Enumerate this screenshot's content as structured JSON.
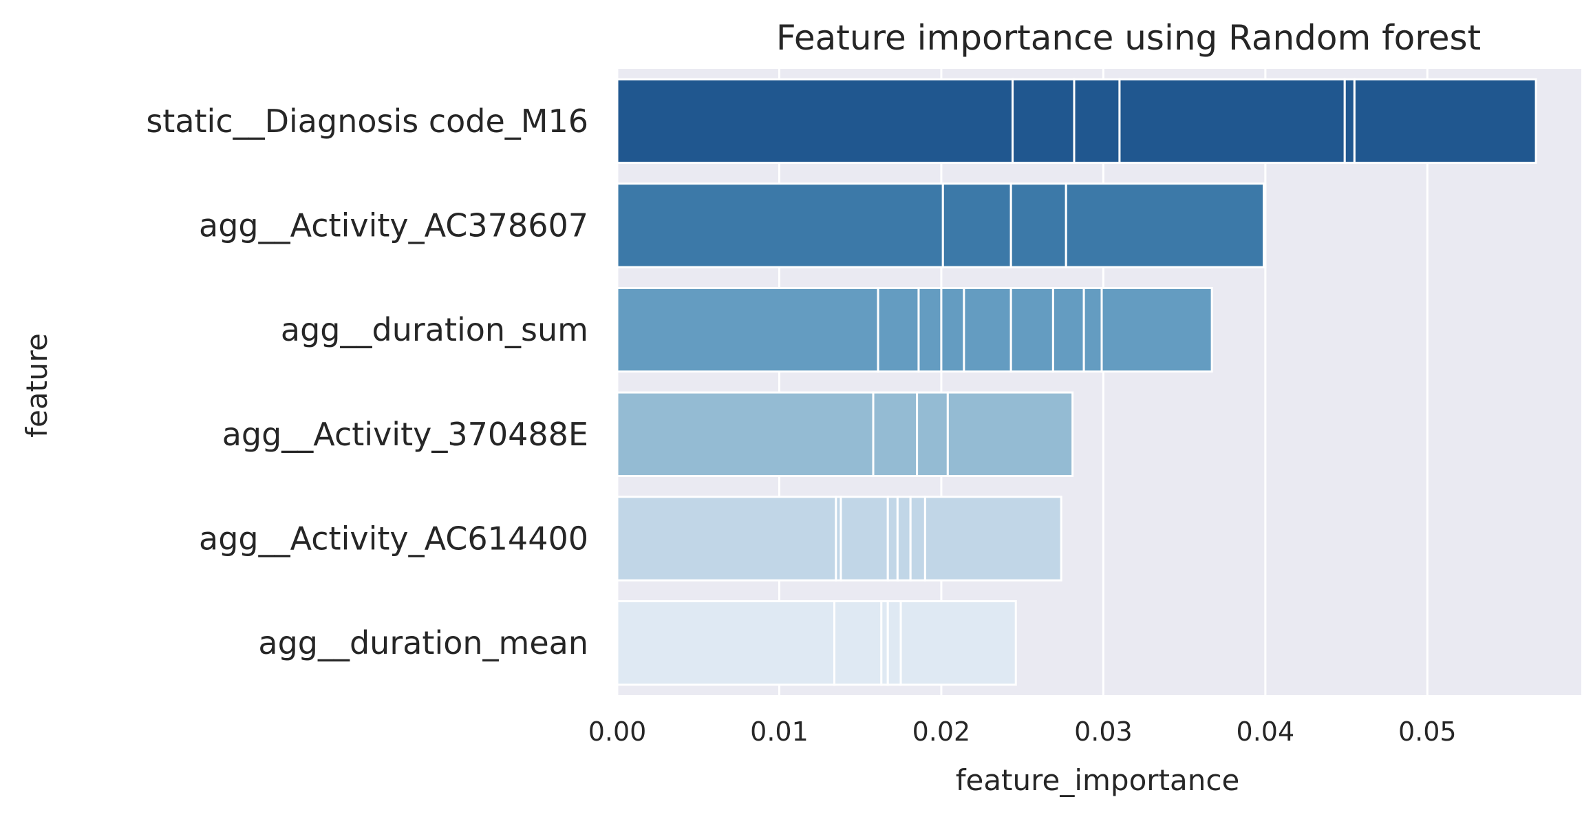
{
  "chart_data": {
    "type": "bar",
    "orientation": "horizontal",
    "title": "Feature importance using Random forest",
    "xlabel": "feature_importance",
    "ylabel": "feature",
    "xlim": [
      0,
      0.0595
    ],
    "xticks": [
      0.0,
      0.01,
      0.02,
      0.03,
      0.04,
      0.05
    ],
    "xtick_labels": [
      "0.00",
      "0.01",
      "0.02",
      "0.03",
      "0.04",
      "0.05"
    ],
    "grid": true,
    "colors": [
      "#20578F",
      "#3C79A8",
      "#649CC1",
      "#94BBD3",
      "#C1D6E7",
      "#DFE9F3"
    ],
    "grid_color": "#ffffff",
    "background_color": "#EAEAF2",
    "categories": [
      "static__Diagnosis code_M16",
      "agg__Activity_AC378607",
      "agg__duration_sum",
      "agg__Activity_370488E",
      "agg__Activity_AC614400",
      "agg__duration_mean"
    ],
    "values": [
      0.0567,
      0.04,
      0.0367,
      0.0281,
      0.0274,
      0.0246
    ],
    "segments": [
      [
        0.0244,
        0.0282,
        0.031,
        0.0449,
        0.0455,
        0.0567
      ],
      [
        0.0201,
        0.0243,
        0.0277,
        0.0399,
        0.04
      ],
      [
        0.0161,
        0.0186,
        0.02,
        0.0214,
        0.0243,
        0.0269,
        0.0288,
        0.0299,
        0.0367
      ],
      [
        0.0158,
        0.0185,
        0.0204,
        0.0281
      ],
      [
        0.0135,
        0.0138,
        0.0167,
        0.0173,
        0.0181,
        0.019,
        0.0274
      ],
      [
        0.0134,
        0.0163,
        0.0167,
        0.0175,
        0.0246
      ]
    ]
  }
}
